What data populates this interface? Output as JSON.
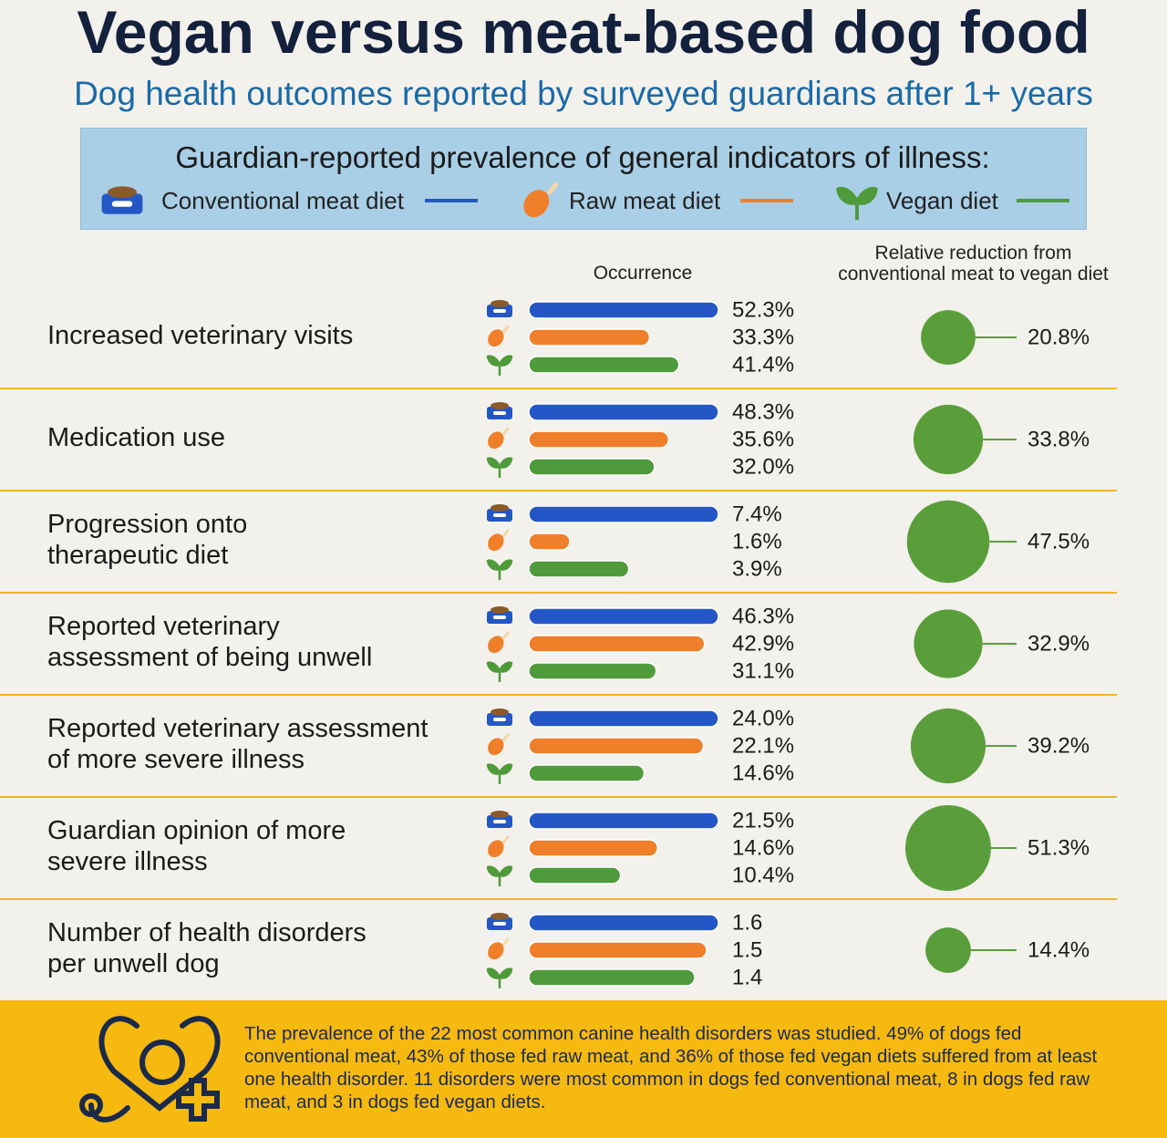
{
  "title": "Vegan versus meat-based dog food",
  "subtitle": "Dog health outcomes reported by surveyed guardians after 1+ years",
  "legend": {
    "title": "Guardian-reported prevalence of general indicators of illness:"
  },
  "chart_data": {
    "type": "bar",
    "x_label": "Occurrence",
    "categories": [
      "Increased veterinary visits",
      "Medication use",
      "Progression onto\ntherapeutic diet",
      "Reported veterinary\nassessment of being unwell",
      "Reported veterinary assessment\nof more severe illness",
      "Guardian opinion of more\nsevere illness",
      "Number of health disorders\nper unwell dog"
    ],
    "series": [
      {
        "name": "Conventional meat diet",
        "color": "#2457c5",
        "values": [
          52.3,
          48.3,
          7.4,
          46.3,
          24.0,
          21.5,
          1.6
        ],
        "value_labels": [
          "52.3%",
          "48.3%",
          "7.4%",
          "46.3%",
          "24.0%",
          "21.5%",
          null
        ]
      },
      {
        "name": "Raw meat diet",
        "color": "#f07f2a",
        "values": [
          33.3,
          35.6,
          1.6,
          42.9,
          22.1,
          14.6,
          1.5
        ],
        "value_labels": [
          "33.3%",
          "35.6%",
          "1.6%",
          "42.9%",
          "22.1%",
          "14.6%",
          null
        ]
      },
      {
        "name": "Vegan diet",
        "color": "#4f9a3a",
        "values": [
          41.4,
          32.0,
          3.9,
          31.1,
          14.6,
          10.4,
          1.4
        ],
        "value_labels": [
          "41.4%",
          "32.0%",
          "3.9%",
          "31.1%",
          "14.6%",
          "10.4%",
          null
        ]
      }
    ],
    "reduction": {
      "label": "Relative reduction from conventional meat to vegan diet",
      "color": "#5a9e3c",
      "values": [
        20.8,
        33.8,
        47.5,
        32.9,
        39.2,
        51.3,
        14.4
      ],
      "value_labels": [
        "20.8%",
        "33.8%",
        "47.5%",
        "32.9%",
        "39.2%",
        "51.3%",
        "14.4%"
      ]
    }
  },
  "footer": "The prevalence of the 22 most common canine health disorders was studied. 49% of dogs fed conventional meat, 43% of those fed raw meat, and 36% of those fed vegan diets suffered from at least one health disorder. 11 disorders were most common in dogs fed conventional meat, 8 in dogs fed raw meat, and 3 in dogs fed vegan diets."
}
